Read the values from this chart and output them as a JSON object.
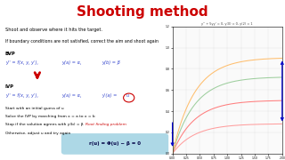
{
  "title": "Shooting method",
  "title_bg": "#FFFF00",
  "title_color": "#CC0000",
  "bg_color": "#FFFFFF",
  "text_color": "#000000",
  "line1": "Shoot and observe where it hits the target.",
  "line2": "If boundary conditions are not satisfied, correct the aim and shoot again",
  "bvp_label": "BVP",
  "bvp_eq1": "y'' = f(x, y, y'),",
  "bvp_eq2": "y(a) = α,",
  "bvp_eq3": "y(b) = β",
  "ivp_label": "IVP",
  "ivp_eq1": "y'' = f(x, y, y'),",
  "ivp_eq2": "y(a) = α,",
  "ivp_eq3": "y'(a) =",
  "ivp_u": "u",
  "step1": "Start with an initial guess of u",
  "step2": "Solve the IVP by marching from x = a to x = b",
  "step3a": "Stop if the solution agrees with y(b) = β   ",
  "step3b": "Root finding problem",
  "step4": "Otherwise, adjust u and try again",
  "formula": "r(u) = Φ(u) − β = 0",
  "formula_bg": "#ADD8E6",
  "x_range": [
    0.0,
    2.0
  ],
  "y_range": [
    0.0,
    1.2
  ],
  "graph_title": "y'' + 5yy' = 0, y(0) = 0, y(2) = 1",
  "xticks": [
    0.0,
    0.25,
    0.5,
    0.75,
    1.0,
    1.25,
    1.5,
    1.75,
    2.0
  ],
  "yticks": [
    0.0,
    0.2,
    0.4,
    0.6,
    0.8,
    1.0,
    1.2
  ],
  "curve_colors": [
    "#FF9999",
    "#FF7777",
    "#99CC99",
    "#FFBB66"
  ],
  "curve_slopes": [
    0.28,
    0.5,
    0.72,
    0.9
  ],
  "arrow_color": "#0000CC",
  "arrow_red": "#CC0000"
}
